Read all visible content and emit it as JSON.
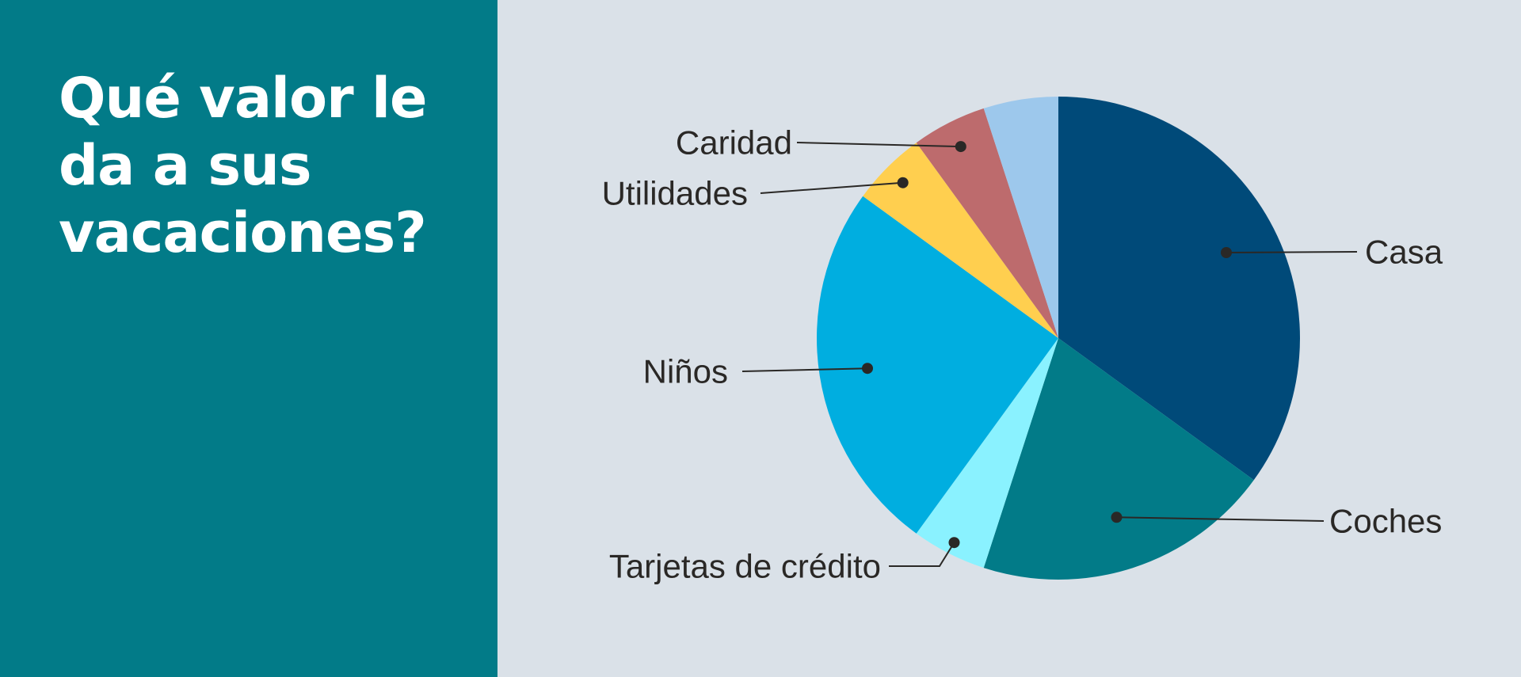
{
  "title": "Qué valor le da a sus vacaciones?",
  "colors": {
    "left_panel": "#027b88",
    "right_panel": "#dae1e8",
    "leader_line": "#2a2826"
  },
  "chart_data": {
    "type": "pie",
    "title": "Qué valor le da a sus vacaciones?",
    "start": "12 o'clock, clockwise",
    "slices": [
      {
        "label": "Casa",
        "value": 35,
        "color": "#004a79"
      },
      {
        "label": "Coches",
        "value": 20,
        "color": "#027b88"
      },
      {
        "label": "Tarjetas de crédito",
        "value": 5,
        "color": "#8af2ff"
      },
      {
        "label": "Niños",
        "value": 25,
        "color": "#00aee0"
      },
      {
        "label": "Utilidades",
        "value": 5,
        "color": "#ffcf4f"
      },
      {
        "label": "Caridad",
        "value": 5,
        "color": "#bd6b6d"
      },
      {
        "label": "",
        "value": 5,
        "color": "#9dc8ec"
      }
    ]
  }
}
